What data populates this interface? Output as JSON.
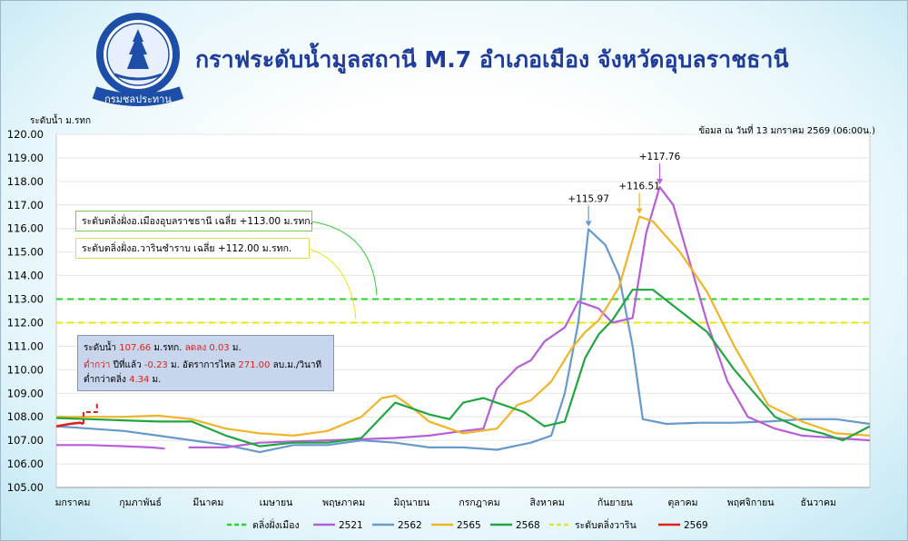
{
  "header": {
    "title": "กราฟระดับน้ำมูลสถานี M.7 อำเภอเมือง จังหวัดอุบลราชธานี",
    "logo_text": "กรมชลประทาน",
    "y_unit_label": "ระดับน้ำ ม.รทก",
    "as_of": "ข้อมูล ณ วันที่ 13 มกราคม 2569 (06:00น.)"
  },
  "notes": {
    "bank_mueang": "ระดับตลิ่งฝั่งอ.เมืองอุบลราชธานี เฉลี่ย +113.00 ม.รทก.",
    "bank_warin": "ระดับตลิ่งฝั่งอ.วารินชำราบ  เฉลี่ย +112.00 ม.รทก."
  },
  "infobox": {
    "level_label": "ระดับน้ำ",
    "level_value": "107.66",
    "level_unit": "ม.รทก.",
    "trend_label": "ลดลง",
    "trend_value": "0.03",
    "trend_unit": "ม.",
    "lower_label": "ต่ำกว่า",
    "lower_text": "ปีที่แล้ว",
    "lower_value": "-0.23",
    "lower_unit": "ม. อัตราการไหล",
    "flow_value": "271.00",
    "flow_unit": "ลบ.ม./วินาที",
    "below_bank_label": "ต่ำกว่าตลิ่ง",
    "below_bank_value": "4.34",
    "below_bank_unit": "ม."
  },
  "chart_data": {
    "type": "line",
    "ylabel": "ระดับน้ำ ม.รทก",
    "ylim": [
      105,
      120
    ],
    "yticks": [
      "105.00",
      "106.00",
      "107.00",
      "108.00",
      "109.00",
      "110.00",
      "111.00",
      "112.00",
      "113.00",
      "114.00",
      "115.00",
      "116.00",
      "117.00",
      "118.00",
      "119.00",
      "120.00"
    ],
    "months": [
      "มกราคม",
      "กุมภาพันธ์",
      "มีนาคม",
      "เมษายน",
      "พฤษภาคม",
      "มิถุนายน",
      "กรกฎาคม",
      "สิงหาคม",
      "กันยายน",
      "ตุลาคม",
      "พฤศจิกายน",
      "ธันวาคม"
    ],
    "x_unit": "month (0 = 1 January, 12 = 31 December)",
    "reference_lines": [
      {
        "name": "ตลิ่งฝั่งเมือง",
        "value": 113.0,
        "color": "#33cc33"
      },
      {
        "name": "ระดับตลิ่งวาริน",
        "value": 112.0,
        "color": "#e6e619"
      }
    ],
    "annotations": [
      {
        "text": "+115.97",
        "x": 7.85,
        "y": 115.97,
        "color": "#6699cc"
      },
      {
        "text": "+116.51",
        "x": 8.6,
        "y": 116.51,
        "color": "#f0b428"
      },
      {
        "text": "+117.76",
        "x": 8.9,
        "y": 117.76,
        "color": "#b65fd6"
      }
    ],
    "series": [
      {
        "name": "2521",
        "color": "#b65fd6",
        "points": [
          [
            0,
            106.8
          ],
          [
            0.5,
            106.8
          ],
          [
            1,
            106.75
          ],
          [
            1.4,
            106.7
          ],
          [
            1.6,
            106.65
          ]
        ]
      },
      {
        "name": "2521",
        "color": "#b65fd6",
        "points": [
          [
            1.95,
            106.7
          ],
          [
            2.5,
            106.7
          ],
          [
            3,
            106.9
          ],
          [
            3.5,
            106.95
          ],
          [
            4,
            107.0
          ],
          [
            4.5,
            107.05
          ],
          [
            5,
            107.1
          ],
          [
            5.5,
            107.2
          ],
          [
            6,
            107.4
          ],
          [
            6.3,
            107.5
          ],
          [
            6.5,
            109.2
          ],
          [
            6.8,
            110.1
          ],
          [
            7,
            110.4
          ],
          [
            7.2,
            111.2
          ],
          [
            7.5,
            111.8
          ],
          [
            7.7,
            112.9
          ],
          [
            8,
            112.6
          ],
          [
            8.2,
            112.0
          ],
          [
            8.5,
            112.2
          ],
          [
            8.7,
            115.8
          ],
          [
            8.9,
            117.76
          ],
          [
            9.1,
            117.0
          ],
          [
            9.3,
            115.0
          ],
          [
            9.6,
            112.0
          ],
          [
            9.9,
            109.5
          ],
          [
            10.2,
            108.0
          ],
          [
            10.6,
            107.5
          ],
          [
            11,
            107.2
          ],
          [
            11.5,
            107.1
          ],
          [
            12,
            107.0
          ]
        ]
      },
      {
        "name": "2562",
        "color": "#6699cc",
        "points": [
          [
            0,
            107.6
          ],
          [
            0.5,
            107.5
          ],
          [
            1,
            107.4
          ],
          [
            1.5,
            107.2
          ],
          [
            2,
            107.0
          ],
          [
            2.5,
            106.8
          ],
          [
            3,
            106.5
          ],
          [
            3.5,
            106.8
          ],
          [
            4,
            106.8
          ],
          [
            4.5,
            107.0
          ],
          [
            5,
            106.9
          ],
          [
            5.5,
            106.7
          ],
          [
            6,
            106.7
          ],
          [
            6.5,
            106.6
          ],
          [
            7,
            106.9
          ],
          [
            7.3,
            107.2
          ],
          [
            7.5,
            109.0
          ],
          [
            7.7,
            112.0
          ],
          [
            7.85,
            115.97
          ],
          [
            8.1,
            115.3
          ],
          [
            8.3,
            114.0
          ],
          [
            8.5,
            111.0
          ],
          [
            8.65,
            107.9
          ],
          [
            9,
            107.7
          ],
          [
            9.5,
            107.75
          ],
          [
            10,
            107.75
          ],
          [
            10.5,
            107.8
          ],
          [
            11,
            107.9
          ],
          [
            11.5,
            107.9
          ],
          [
            12,
            107.7
          ]
        ]
      },
      {
        "name": "2565",
        "color": "#f0b428",
        "points": [
          [
            0,
            108.0
          ],
          [
            0.5,
            108.0
          ],
          [
            1,
            108.0
          ],
          [
            1.5,
            108.05
          ],
          [
            2,
            107.9
          ],
          [
            2.5,
            107.5
          ],
          [
            3,
            107.3
          ],
          [
            3.5,
            107.2
          ],
          [
            4,
            107.4
          ],
          [
            4.5,
            108.0
          ],
          [
            4.8,
            108.8
          ],
          [
            5,
            108.9
          ],
          [
            5.2,
            108.5
          ],
          [
            5.5,
            107.8
          ],
          [
            6,
            107.3
          ],
          [
            6.5,
            107.5
          ],
          [
            6.8,
            108.5
          ],
          [
            7,
            108.7
          ],
          [
            7.3,
            109.5
          ],
          [
            7.6,
            110.9
          ],
          [
            7.8,
            111.6
          ],
          [
            8,
            112.1
          ],
          [
            8.3,
            113.5
          ],
          [
            8.6,
            116.51
          ],
          [
            8.8,
            116.3
          ],
          [
            9.2,
            115.0
          ],
          [
            9.6,
            113.3
          ],
          [
            10,
            111.0
          ],
          [
            10.5,
            108.5
          ],
          [
            11,
            107.8
          ],
          [
            11.5,
            107.3
          ],
          [
            12,
            107.2
          ]
        ]
      },
      {
        "name": "2568",
        "color": "#22a541",
        "points": [
          [
            0,
            107.95
          ],
          [
            0.5,
            107.9
          ],
          [
            1,
            107.85
          ],
          [
            1.5,
            107.8
          ],
          [
            2,
            107.8
          ],
          [
            2.5,
            107.2
          ],
          [
            3,
            106.75
          ],
          [
            3.5,
            106.9
          ],
          [
            4,
            106.9
          ],
          [
            4.5,
            107.1
          ],
          [
            5,
            108.6
          ],
          [
            5.5,
            108.1
          ],
          [
            5.8,
            107.9
          ],
          [
            6,
            108.6
          ],
          [
            6.3,
            108.8
          ],
          [
            6.6,
            108.5
          ],
          [
            6.9,
            108.2
          ],
          [
            7.2,
            107.6
          ],
          [
            7.5,
            107.8
          ],
          [
            7.8,
            110.5
          ],
          [
            8,
            111.5
          ],
          [
            8.2,
            112.1
          ],
          [
            8.5,
            113.4
          ],
          [
            8.8,
            113.4
          ],
          [
            9.2,
            112.5
          ],
          [
            9.6,
            111.6
          ],
          [
            10,
            110.0
          ],
          [
            10.3,
            109.0
          ],
          [
            10.6,
            108.0
          ],
          [
            11,
            107.5
          ],
          [
            11.3,
            107.3
          ],
          [
            11.6,
            107.0
          ],
          [
            12,
            107.6
          ]
        ]
      },
      {
        "name": "2569",
        "color": "#e0201a",
        "points": [
          [
            0,
            107.6
          ],
          [
            0.2,
            107.7
          ],
          [
            0.35,
            107.75
          ],
          [
            0.4,
            107.7
          ]
        ]
      }
    ],
    "forecast": {
      "color": "#e0201a",
      "points": [
        [
          0.4,
          107.7
        ],
        [
          0.4,
          108.2
        ],
        [
          0.6,
          108.2
        ],
        [
          0.6,
          108.6
        ]
      ]
    }
  },
  "legend": [
    {
      "label": "ตลิ่งฝั่งเมือง",
      "color": "#33cc33",
      "style": "dashed"
    },
    {
      "label": "2521",
      "color": "#b65fd6",
      "style": "solid"
    },
    {
      "label": "2562",
      "color": "#6699cc",
      "style": "solid"
    },
    {
      "label": "2565",
      "color": "#f0b428",
      "style": "solid"
    },
    {
      "label": "2568",
      "color": "#22a541",
      "style": "solid"
    },
    {
      "label": "ระดับตลิ่งวาริน",
      "color": "#e6e619",
      "style": "dashed"
    },
    {
      "label": "2569",
      "color": "#e0201a",
      "style": "solid"
    }
  ]
}
